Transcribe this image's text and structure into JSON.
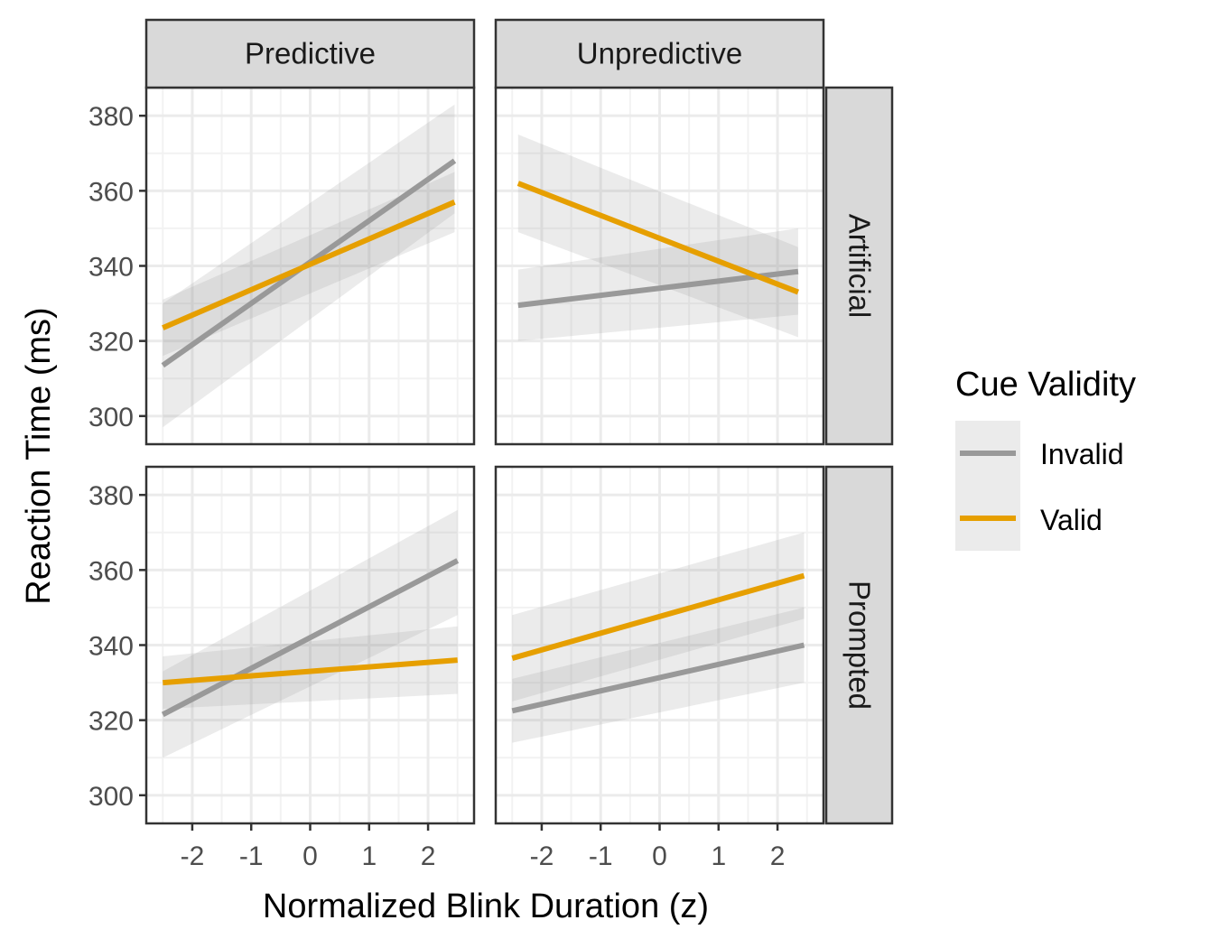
{
  "chart_data": {
    "type": "line",
    "xlabel": "Normalized Blink Duration (z)",
    "ylabel": "Reaction Time (ms)",
    "xlim": [
      -2.78,
      2.78
    ],
    "ylim": [
      292.5,
      387.5
    ],
    "xticks": [
      -2,
      -1,
      0,
      1,
      2
    ],
    "yticks": [
      300,
      320,
      340,
      360,
      380
    ],
    "xtick_labels": [
      "-2",
      "-1",
      "0",
      "1",
      "2"
    ],
    "ytick_labels": [
      "300",
      "320",
      "340",
      "360",
      "380"
    ],
    "grid": true,
    "columns": [
      "Predictive",
      "Unpredictive"
    ],
    "rows": [
      "Artificial",
      "Prompted"
    ],
    "legend": {
      "title": "Cue Validity",
      "position": "right",
      "entries": [
        {
          "name": "Invalid",
          "color": "#999999"
        },
        {
          "name": "Valid",
          "color": "#E69F00"
        }
      ]
    },
    "panels": [
      {
        "column": "Predictive",
        "row": "Artificial",
        "series": [
          {
            "name": "Invalid",
            "x": [
              -2.5,
              2.45
            ],
            "y": [
              313.5,
              368.0
            ],
            "ci_lower": [
              297.0,
              354.0
            ],
            "ci_upper": [
              330.0,
              383.0
            ]
          },
          {
            "name": "Valid",
            "x": [
              -2.5,
              2.45
            ],
            "y": [
              323.5,
              357.0
            ],
            "ci_lower": [
              316.0,
              349.0
            ],
            "ci_upper": [
              331.0,
              365.0
            ]
          }
        ]
      },
      {
        "column": "Unpredictive",
        "row": "Artificial",
        "series": [
          {
            "name": "Invalid",
            "x": [
              -2.4,
              2.35
            ],
            "y": [
              329.5,
              338.5
            ],
            "ci_lower": [
              320.0,
              327.0
            ],
            "ci_upper": [
              339.0,
              350.0
            ]
          },
          {
            "name": "Valid",
            "x": [
              -2.4,
              2.35
            ],
            "y": [
              362.0,
              333.0
            ],
            "ci_lower": [
              349.0,
              321.0
            ],
            "ci_upper": [
              375.0,
              345.0
            ]
          }
        ]
      },
      {
        "column": "Predictive",
        "row": "Prompted",
        "series": [
          {
            "name": "Invalid",
            "x": [
              -2.5,
              2.5
            ],
            "y": [
              321.5,
              362.5
            ],
            "ci_lower": [
              310.0,
              348.0
            ],
            "ci_upper": [
              333.0,
              376.0
            ]
          },
          {
            "name": "Valid",
            "x": [
              -2.5,
              2.5
            ],
            "y": [
              330.0,
              336.0
            ],
            "ci_lower": [
              323.0,
              327.0
            ],
            "ci_upper": [
              337.0,
              345.0
            ]
          }
        ]
      },
      {
        "column": "Unpredictive",
        "row": "Prompted",
        "series": [
          {
            "name": "Invalid",
            "x": [
              -2.5,
              2.45
            ],
            "y": [
              322.5,
              340.0
            ],
            "ci_lower": [
              314.0,
              330.0
            ],
            "ci_upper": [
              331.0,
              350.0
            ]
          },
          {
            "name": "Valid",
            "x": [
              -2.5,
              2.45
            ],
            "y": [
              336.5,
              358.5
            ],
            "ci_lower": [
              325.0,
              347.0
            ],
            "ci_upper": [
              348.0,
              370.0
            ]
          }
        ]
      }
    ]
  }
}
